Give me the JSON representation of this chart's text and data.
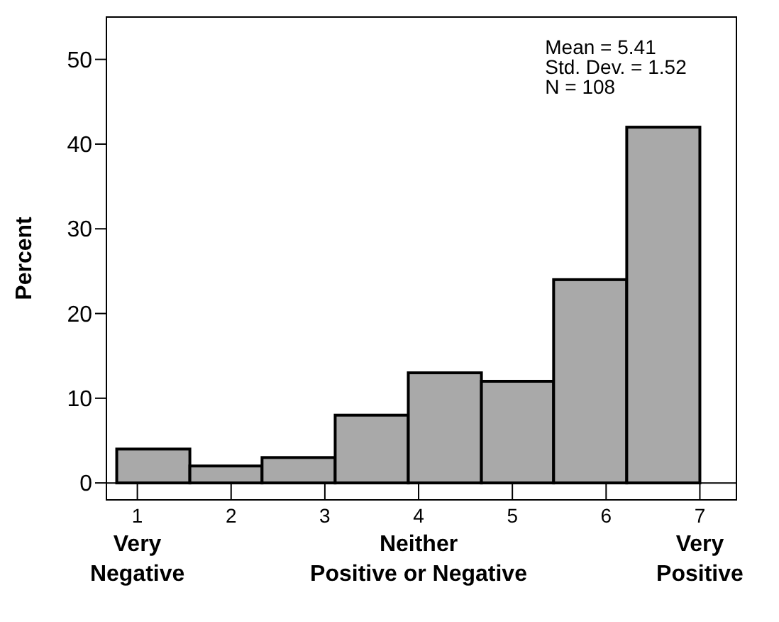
{
  "chart_data": {
    "type": "histogram",
    "ylabel": "Percent",
    "bins": [
      0.78,
      1.56,
      2.33,
      3.11,
      3.89,
      4.67,
      5.44,
      6.22,
      7.0
    ],
    "values": [
      4,
      2,
      3,
      8,
      13,
      12,
      24,
      42
    ],
    "color": "#a9a9a9",
    "xlim": [
      0.67,
      7.39
    ],
    "xticks": [
      {
        "value": 1,
        "label": "1\nVery\nNegative"
      },
      2,
      3,
      {
        "value": 4,
        "label": "4\nNeither\nPositive or Negative"
      },
      5,
      6,
      {
        "value": 7,
        "label": "7\nVery\nPositive"
      }
    ],
    "ylim": [
      -2,
      55
    ],
    "yticks": [
      0,
      10,
      20,
      30,
      40,
      50
    ],
    "annotations": [
      "Mean = 5.41\nStd. Dev. = 1.52\nN = 108"
    ]
  }
}
